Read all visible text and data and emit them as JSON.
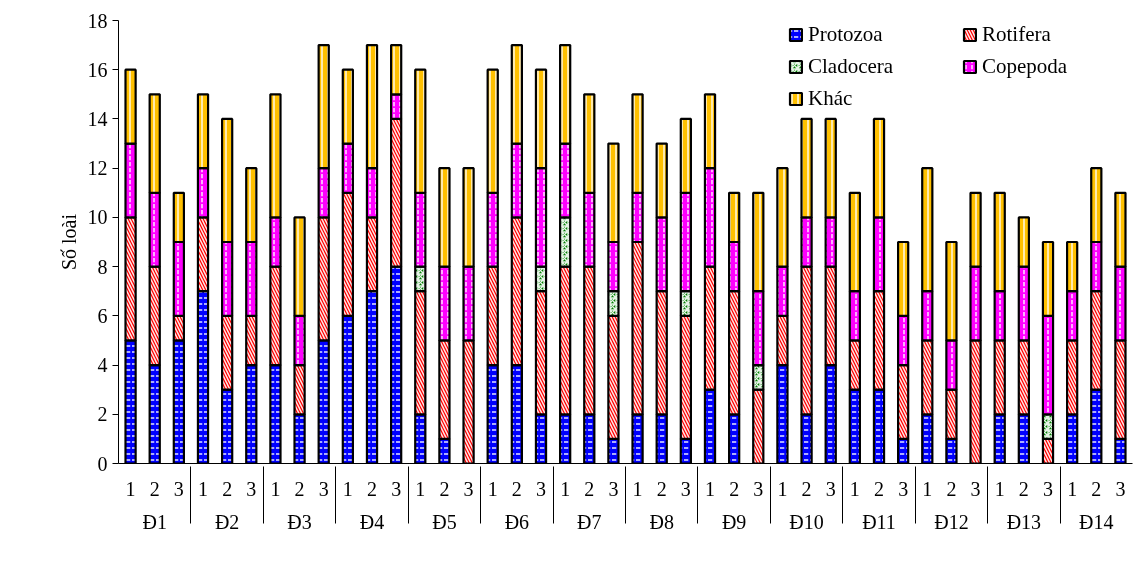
{
  "chart_data": {
    "type": "bar",
    "stacked": true,
    "ylabel": "Số loài",
    "ylim": [
      0,
      18
    ],
    "yticks": [
      0,
      2,
      4,
      6,
      8,
      10,
      12,
      14,
      16,
      18
    ],
    "grid": false,
    "legend": "top right",
    "categories": [
      [
        "Đ1",
        "1"
      ],
      [
        null,
        "2"
      ],
      [
        null,
        "3"
      ],
      [
        "Đ2",
        "1"
      ],
      [
        null,
        "2"
      ],
      [
        null,
        "3"
      ],
      [
        "Đ3",
        "1"
      ],
      [
        null,
        "2"
      ],
      [
        null,
        "3"
      ],
      [
        "Đ4",
        "1"
      ],
      [
        null,
        "2"
      ],
      [
        null,
        "3"
      ],
      [
        "Đ5",
        "1"
      ],
      [
        null,
        "2"
      ],
      [
        null,
        "3"
      ],
      [
        "Đ6",
        "1"
      ],
      [
        null,
        "2"
      ],
      [
        null,
        "3"
      ],
      [
        "Đ7",
        "1"
      ],
      [
        null,
        "2"
      ],
      [
        null,
        "3"
      ],
      [
        "Đ8",
        "1"
      ],
      [
        null,
        "2"
      ],
      [
        null,
        "3"
      ],
      [
        "Đ9",
        "1"
      ],
      [
        null,
        "2"
      ],
      [
        null,
        "3"
      ],
      [
        "Đ10",
        "1"
      ],
      [
        null,
        "2"
      ],
      [
        null,
        "3"
      ],
      [
        "Đ11",
        "1"
      ],
      [
        null,
        "2"
      ],
      [
        null,
        "3"
      ],
      [
        "Đ12",
        "1"
      ],
      [
        null,
        "2"
      ],
      [
        null,
        "3"
      ],
      [
        "Đ13",
        "1"
      ],
      [
        null,
        "2"
      ],
      [
        null,
        "3"
      ],
      [
        "Đ14",
        "1"
      ],
      [
        null,
        "2"
      ],
      [
        null,
        "3"
      ]
    ],
    "series": [
      {
        "name": "Protozoa",
        "color": "#0000ff",
        "values": [
          5,
          4,
          5,
          7,
          3,
          4,
          4,
          2,
          5,
          6,
          7,
          8,
          2,
          1,
          0,
          4,
          4,
          2,
          2,
          2,
          1,
          2,
          2,
          1,
          3,
          2,
          0,
          4,
          2,
          4,
          3,
          3,
          1,
          2,
          1,
          0,
          2,
          2,
          0,
          2,
          3,
          1
        ]
      },
      {
        "name": "Rotifera",
        "color": "#ff0000",
        "values": [
          5,
          4,
          1,
          3,
          3,
          2,
          4,
          2,
          5,
          5,
          3,
          6,
          5,
          4,
          5,
          4,
          6,
          5,
          6,
          6,
          5,
          7,
          5,
          5,
          5,
          5,
          3,
          2,
          6,
          4,
          2,
          4,
          3,
          3,
          2,
          5,
          3,
          3,
          1,
          3,
          4,
          4
        ]
      },
      {
        "name": "Cladocera",
        "color": "#008000",
        "values": [
          0,
          0,
          0,
          0,
          0,
          0,
          0,
          0,
          0,
          0,
          0,
          0,
          1,
          0,
          0,
          0,
          0,
          1,
          2,
          0,
          1,
          0,
          0,
          1,
          0,
          0,
          1,
          0,
          0,
          0,
          0,
          0,
          0,
          0,
          0,
          0,
          0,
          0,
          1,
          0,
          0,
          0
        ]
      },
      {
        "name": "Copepoda",
        "color": "#ff00ff",
        "values": [
          3,
          3,
          3,
          2,
          3,
          3,
          2,
          2,
          2,
          2,
          2,
          1,
          3,
          3,
          3,
          3,
          3,
          4,
          3,
          3,
          2,
          2,
          3,
          4,
          4,
          2,
          3,
          2,
          2,
          2,
          2,
          3,
          2,
          2,
          2,
          3,
          2,
          3,
          4,
          2,
          2,
          3
        ]
      },
      {
        "name": "Khác",
        "color": "#ffc000",
        "values": [
          3,
          4,
          2,
          3,
          5,
          3,
          5,
          4,
          5,
          3,
          5,
          2,
          5,
          4,
          4,
          5,
          4,
          4,
          4,
          4,
          4,
          4,
          3,
          3,
          3,
          2,
          4,
          4,
          4,
          4,
          4,
          4,
          3,
          5,
          4,
          3,
          4,
          2,
          3,
          2,
          3,
          3
        ]
      }
    ]
  }
}
